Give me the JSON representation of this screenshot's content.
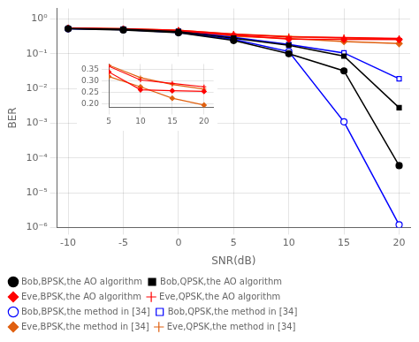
{
  "chart_data": [
    {
      "type": "line",
      "log": "y",
      "grid": true,
      "legend": "lower left",
      "xlabel": "SNR(dB)",
      "ylabel": "BER",
      "x": [
        -10,
        -5,
        0,
        5,
        10,
        15,
        20
      ],
      "xlim": [
        -11,
        21
      ],
      "xticks": [
        -10,
        -5,
        0,
        5,
        10,
        15,
        20
      ],
      "ylim": [
        1e-06,
        2
      ],
      "yticks": [
        {
          "value": 1e-06,
          "label": "10⁻⁶"
        },
        {
          "value": 1e-05,
          "label": "10⁻⁵"
        },
        {
          "value": 0.0001,
          "label": "10⁻⁴"
        },
        {
          "value": 0.001,
          "label": "10⁻³"
        },
        {
          "value": 0.01,
          "label": "10⁻²"
        },
        {
          "value": 0.1,
          "label": "10⁻¹"
        },
        {
          "value": 1,
          "label": "10⁰"
        }
      ],
      "series": [
        {
          "name": "Bob,BPSK,the AO algorithm",
          "color": "#000000",
          "marker": "circle",
          "values": [
            0.52,
            0.48,
            0.4,
            0.24,
            0.1,
            0.032,
            6e-05
          ]
        },
        {
          "name": "Bob,QPSK,the AO algorithm",
          "color": "#000000",
          "marker": "square",
          "values": [
            0.53,
            0.505,
            0.435,
            0.28,
            0.175,
            0.085,
            0.0028
          ]
        },
        {
          "name": "Eve,BPSK,the AO algorithm",
          "color": "#ff0000",
          "marker": "diamond",
          "values": [
            0.535,
            0.505,
            0.45,
            0.34,
            0.262,
            0.258,
            0.255
          ]
        },
        {
          "name": "Eve,QPSK,the AO algorithm",
          "color": "#ff0000",
          "marker": "plus",
          "values": [
            0.545,
            0.52,
            0.47,
            0.365,
            0.305,
            0.29,
            0.275
          ]
        },
        {
          "name": "Bob,BPSK,the method in [34]",
          "color": "#0000ff",
          "marker": "circle-open",
          "values": [
            0.52,
            0.49,
            0.41,
            0.26,
            0.115,
            0.0011,
            1.2e-06
          ]
        },
        {
          "name": "Bob,QPSK,the method in [34]",
          "color": "#0000ff",
          "marker": "square-open",
          "values": [
            0.53,
            0.505,
            0.445,
            0.295,
            0.185,
            0.105,
            0.019
          ]
        },
        {
          "name": "Eve,BPSK,the method in [34]",
          "color": "#e06010",
          "marker": "diamond",
          "values": [
            0.535,
            0.5,
            0.445,
            0.32,
            0.275,
            0.225,
            0.195
          ]
        },
        {
          "name": "Eve,QPSK,the method in [34]",
          "color": "#e06010",
          "marker": "plus",
          "values": [
            0.545,
            0.52,
            0.47,
            0.37,
            0.315,
            0.285,
            0.265
          ]
        }
      ]
    },
    {
      "type": "line",
      "grid": true,
      "x": [
        5,
        10,
        15,
        20
      ],
      "xlim": [
        5,
        21.5
      ],
      "xticks": [
        5,
        10,
        15,
        20
      ],
      "ylim": [
        0.185,
        0.375
      ],
      "yticks": [
        {
          "value": 0.2,
          "label": "0.20"
        },
        0.25,
        {
          "value": 0.3,
          "label": "0.30"
        },
        0.35
      ],
      "series": [
        {
          "color": "#ff0000",
          "marker": "diamond",
          "values": [
            0.34,
            0.262,
            0.258,
            0.255
          ]
        },
        {
          "color": "#ff0000",
          "marker": "plus",
          "values": [
            0.365,
            0.305,
            0.29,
            0.275
          ]
        },
        {
          "color": "#e06010",
          "marker": "diamond",
          "values": [
            0.32,
            0.275,
            0.225,
            0.195
          ]
        },
        {
          "color": "#e06010",
          "marker": "plus",
          "values": [
            0.37,
            0.315,
            0.285,
            0.265
          ]
        }
      ]
    }
  ]
}
